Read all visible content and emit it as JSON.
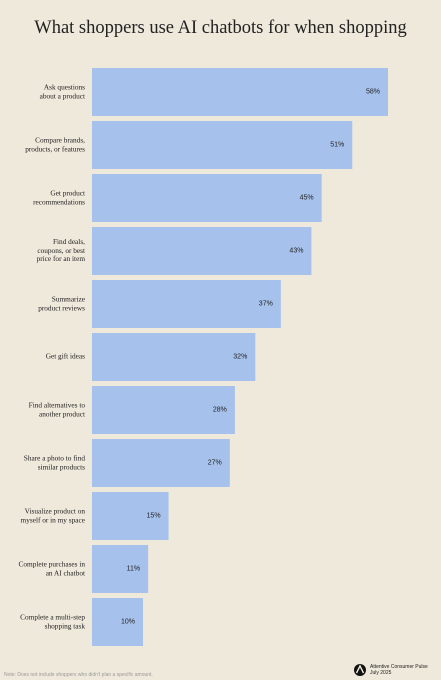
{
  "chart_data": {
    "type": "bar",
    "orientation": "horizontal",
    "title": "What shoppers use AI chatbots for when shopping",
    "categories": [
      "Ask questions\nabout a product",
      "Compare brands,\nproducts, or features",
      "Get product\nrecommendations",
      "Find deals,\ncoupons, or best\nprice for an item",
      "Summarize\nproduct reviews",
      "Get gift ideas",
      "Find alternatives to\nanother product",
      "Share a photo to find\nsimilar products",
      "Visualize product on\nmyself or in my space",
      "Complete purchases in\nan AI chatbot",
      "Complete a multi-step\nshopping task"
    ],
    "values": [
      58,
      51,
      45,
      43,
      37,
      32,
      28,
      27,
      15,
      11,
      10
    ],
    "value_labels": [
      "58%",
      "51%",
      "45%",
      "43%",
      "37%",
      "32%",
      "28%",
      "27%",
      "15%",
      "11%",
      "10%"
    ],
    "color": "#a6c1ec",
    "note": "Note: Does not include shoppers who didn't plan a specific amount.",
    "source": "Attentive Consumer Pulse\nJuly 2025"
  }
}
